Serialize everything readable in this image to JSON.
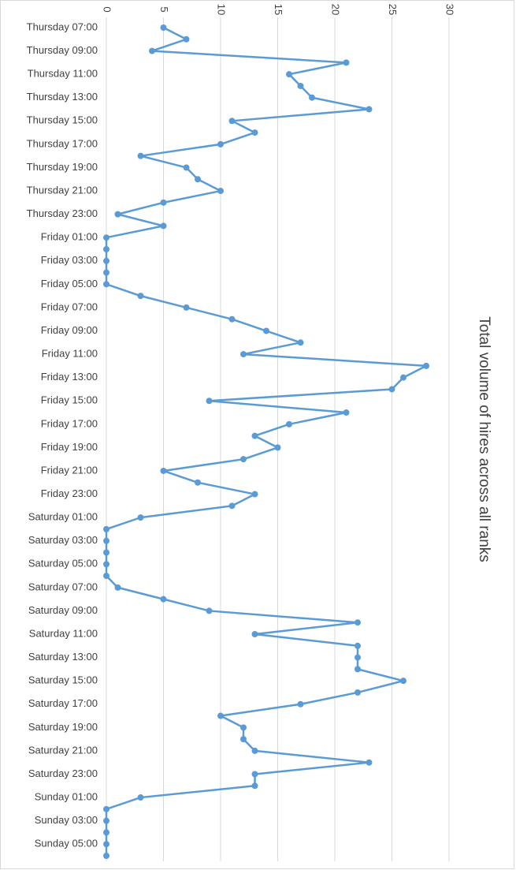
{
  "chart_data": {
    "type": "line",
    "title": "Total volume of hires across all ranks",
    "categories": [
      "Thursday 07:00",
      null,
      "Thursday 09:00",
      null,
      "Thursday 11:00",
      null,
      "Thursday 13:00",
      null,
      "Thursday 15:00",
      null,
      "Thursday 17:00",
      null,
      "Thursday 19:00",
      null,
      "Thursday 21:00",
      null,
      "Thursday 23:00",
      null,
      "Friday 01:00",
      null,
      "Friday 03:00",
      null,
      "Friday 05:00",
      null,
      "Friday 07:00",
      null,
      "Friday 09:00",
      null,
      "Friday 11:00",
      null,
      "Friday 13:00",
      null,
      "Friday 15:00",
      null,
      "Friday 17:00",
      null,
      "Friday 19:00",
      null,
      "Friday 21:00",
      null,
      "Friday 23:00",
      null,
      "Saturday 01:00",
      null,
      "Saturday 03:00",
      null,
      "Saturday 05:00",
      null,
      "Saturday 07:00",
      null,
      "Saturday 09:00",
      null,
      "Saturday 11:00",
      null,
      "Saturday 13:00",
      null,
      "Saturday 15:00",
      null,
      "Saturday 17:00",
      null,
      "Saturday 19:00",
      null,
      "Saturday 21:00",
      null,
      "Saturday 23:00",
      null,
      "Sunday 01:00",
      null,
      "Sunday 03:00",
      null,
      "Sunday 05:00",
      null
    ],
    "values": [
      5,
      7,
      4,
      21,
      16,
      17,
      18,
      23,
      11,
      13,
      10,
      3,
      7,
      8,
      10,
      5,
      1,
      5,
      0,
      0,
      0,
      0,
      0,
      3,
      7,
      11,
      14,
      17,
      12,
      28,
      26,
      25,
      9,
      21,
      16,
      13,
      15,
      12,
      5,
      8,
      13,
      11,
      3,
      0,
      0,
      0,
      0,
      0,
      1,
      5,
      9,
      22,
      13,
      22,
      22,
      22,
      26,
      22,
      17,
      10,
      12,
      12,
      13,
      23,
      13,
      13,
      3,
      0,
      0,
      0,
      0,
      0
    ],
    "color": "#5b9bd5",
    "ylim": [
      0,
      30
    ],
    "yticks": [
      0,
      5,
      10,
      15,
      20,
      25,
      30
    ],
    "grid": true
  }
}
